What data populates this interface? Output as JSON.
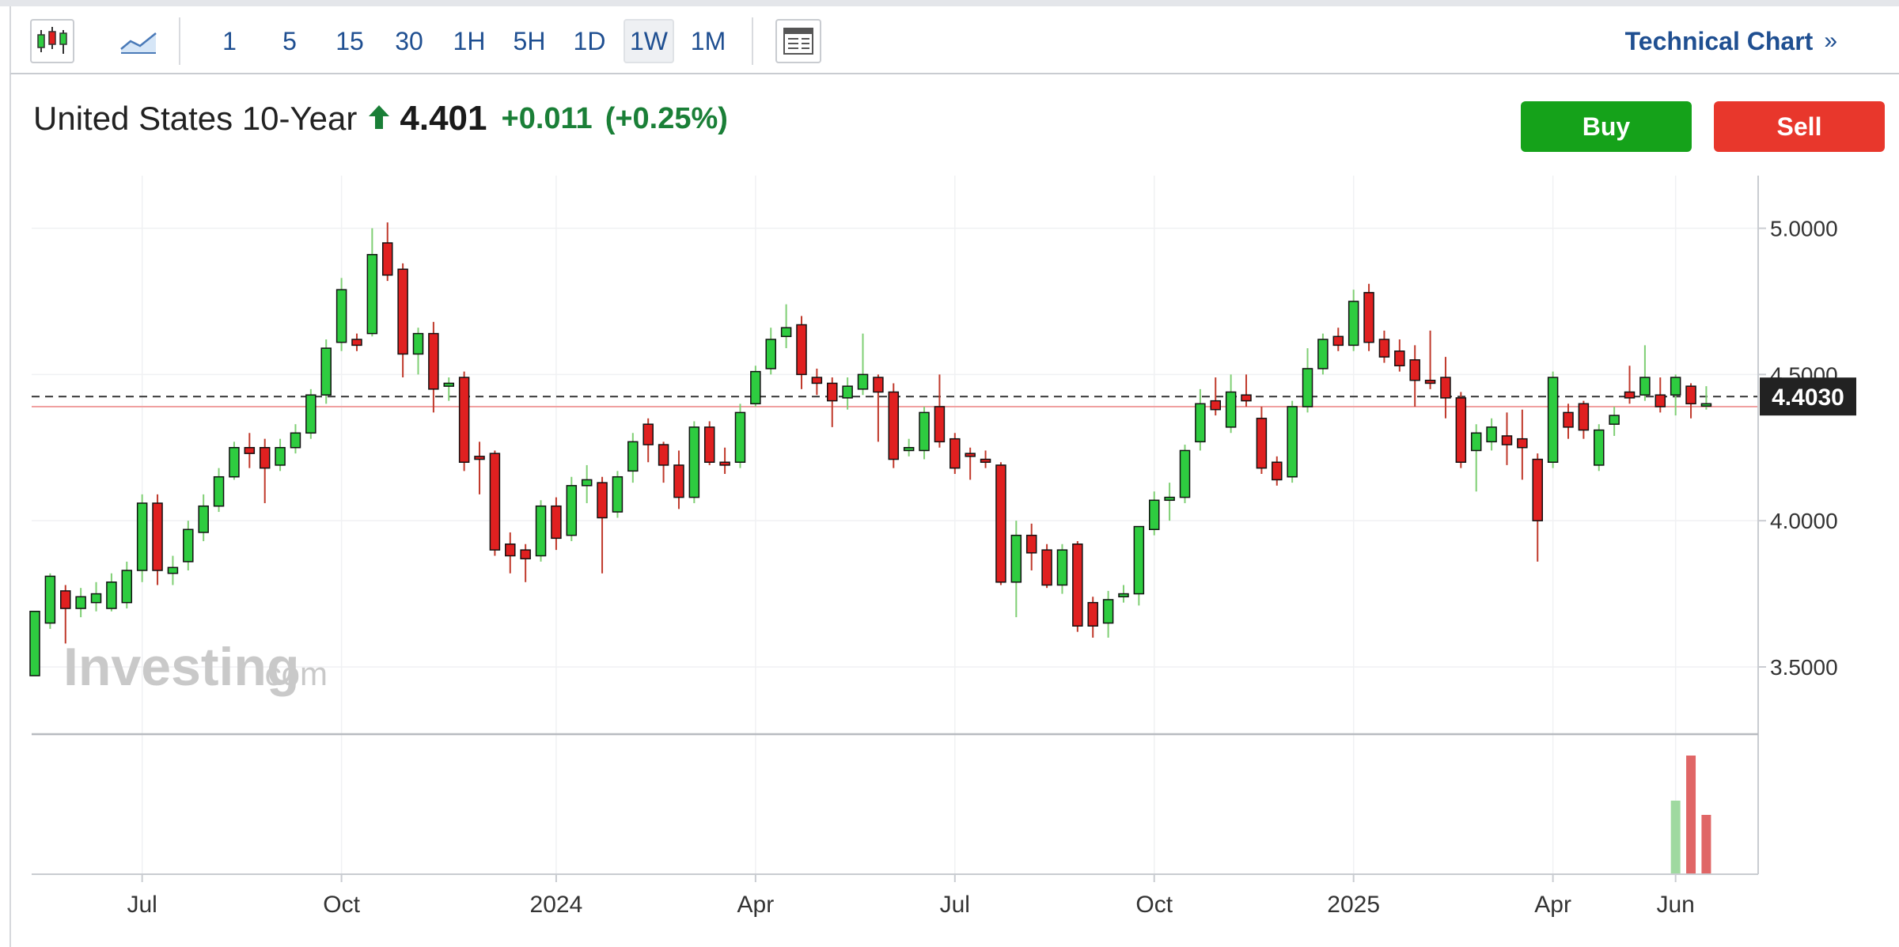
{
  "toolbar": {
    "chart_types": [
      {
        "name": "candlestick-chart-type",
        "icon": "candlestick-icon"
      },
      {
        "name": "area-chart-type",
        "icon": "area-chart-icon"
      }
    ],
    "timeframes": [
      "1",
      "5",
      "15",
      "30",
      "1H",
      "5H",
      "1D",
      "1W",
      "1M"
    ],
    "active_timeframe": "1W",
    "layout_icon": "layout-icon",
    "technical_chart_label": "Technical Chart",
    "technical_chart_chevron": "»"
  },
  "quote": {
    "name": "United States 10-Year",
    "direction_icon": "up-arrow-icon",
    "price": "4.401",
    "change": "+0.011",
    "change_pct": "(+0.25%)"
  },
  "actions": {
    "buy_label": "Buy",
    "sell_label": "Sell"
  },
  "colors": {
    "up": "#2ecc40",
    "down": "#e02020",
    "accent": "#1f4f91",
    "buy": "#15a21a",
    "sell": "#e8372c"
  },
  "watermark": {
    "brand": "Investing",
    "suffix": ".com"
  },
  "chart_data": {
    "type": "candlestick",
    "title": "United States 10-Year",
    "interval": "1W",
    "ylim": [
      3.27,
      5.18
    ],
    "y_ticks": [
      "5.0000",
      "4.5000",
      "4.0000",
      "3.5000"
    ],
    "y_tick_values": [
      5.0,
      4.5,
      4.0,
      3.5
    ],
    "x_ticks": [
      "Jul",
      "Oct",
      "2024",
      "Apr",
      "Jul",
      "Oct",
      "2025",
      "Apr",
      "Jun"
    ],
    "x_tick_week_index": [
      7,
      20,
      34,
      47,
      60,
      73,
      86,
      99,
      107
    ],
    "last_price": 4.403,
    "last_price_label": "4.4030",
    "reference_price": 4.39,
    "grid": true,
    "candles": [
      [
        3.47,
        3.69,
        3.69,
        3.47
      ],
      [
        3.65,
        3.81,
        3.82,
        3.63
      ],
      [
        3.76,
        3.7,
        3.78,
        3.58
      ],
      [
        3.7,
        3.74,
        3.77,
        3.67
      ],
      [
        3.72,
        3.75,
        3.79,
        3.69
      ],
      [
        3.7,
        3.79,
        3.82,
        3.69
      ],
      [
        3.72,
        3.83,
        3.86,
        3.7
      ],
      [
        3.83,
        4.06,
        4.09,
        3.79
      ],
      [
        4.06,
        3.83,
        4.09,
        3.78
      ],
      [
        3.82,
        3.84,
        3.88,
        3.78
      ],
      [
        3.86,
        3.97,
        4.0,
        3.83
      ],
      [
        3.96,
        4.05,
        4.09,
        3.93
      ],
      [
        4.05,
        4.15,
        4.18,
        4.03
      ],
      [
        4.15,
        4.25,
        4.27,
        4.14
      ],
      [
        4.25,
        4.23,
        4.3,
        4.18
      ],
      [
        4.25,
        4.18,
        4.28,
        4.06
      ],
      [
        4.19,
        4.25,
        4.28,
        4.17
      ],
      [
        4.25,
        4.3,
        4.33,
        4.23
      ],
      [
        4.3,
        4.43,
        4.45,
        4.28
      ],
      [
        4.43,
        4.59,
        4.62,
        4.4
      ],
      [
        4.61,
        4.79,
        4.83,
        4.58
      ],
      [
        4.62,
        4.6,
        4.64,
        4.58
      ],
      [
        4.64,
        4.91,
        5.0,
        4.63
      ],
      [
        4.95,
        4.84,
        5.02,
        4.82
      ],
      [
        4.86,
        4.57,
        4.88,
        4.49
      ],
      [
        4.57,
        4.64,
        4.66,
        4.5
      ],
      [
        4.64,
        4.45,
        4.68,
        4.37
      ],
      [
        4.46,
        4.47,
        4.49,
        4.41
      ],
      [
        4.49,
        4.2,
        4.51,
        4.17
      ],
      [
        4.22,
        4.21,
        4.27,
        4.09
      ],
      [
        4.23,
        3.9,
        4.24,
        3.88
      ],
      [
        3.92,
        3.88,
        3.96,
        3.82
      ],
      [
        3.9,
        3.87,
        3.92,
        3.79
      ],
      [
        3.88,
        4.05,
        4.07,
        3.86
      ],
      [
        4.05,
        3.94,
        4.08,
        3.9
      ],
      [
        3.95,
        4.12,
        4.15,
        3.93
      ],
      [
        4.12,
        4.14,
        4.19,
        4.06
      ],
      [
        4.13,
        4.01,
        4.15,
        3.82
      ],
      [
        4.03,
        4.15,
        4.17,
        4.01
      ],
      [
        4.17,
        4.27,
        4.3,
        4.13
      ],
      [
        4.33,
        4.26,
        4.35,
        4.2
      ],
      [
        4.26,
        4.19,
        4.27,
        4.13
      ],
      [
        4.19,
        4.08,
        4.24,
        4.04
      ],
      [
        4.08,
        4.32,
        4.34,
        4.06
      ],
      [
        4.32,
        4.2,
        4.34,
        4.19
      ],
      [
        4.2,
        4.19,
        4.25,
        4.16
      ],
      [
        4.2,
        4.37,
        4.4,
        4.18
      ],
      [
        4.4,
        4.51,
        4.53,
        4.39
      ],
      [
        4.52,
        4.62,
        4.66,
        4.5
      ],
      [
        4.63,
        4.66,
        4.74,
        4.59
      ],
      [
        4.67,
        4.5,
        4.7,
        4.45
      ],
      [
        4.49,
        4.47,
        4.52,
        4.43
      ],
      [
        4.47,
        4.41,
        4.49,
        4.32
      ],
      [
        4.42,
        4.46,
        4.49,
        4.38
      ],
      [
        4.45,
        4.5,
        4.64,
        4.43
      ],
      [
        4.49,
        4.44,
        4.5,
        4.27
      ],
      [
        4.44,
        4.21,
        4.47,
        4.18
      ],
      [
        4.24,
        4.25,
        4.28,
        4.22
      ],
      [
        4.24,
        4.37,
        4.39,
        4.21
      ],
      [
        4.39,
        4.27,
        4.5,
        4.25
      ],
      [
        4.28,
        4.18,
        4.3,
        4.16
      ],
      [
        4.23,
        4.22,
        4.25,
        4.14
      ],
      [
        4.21,
        4.2,
        4.24,
        4.18
      ],
      [
        4.19,
        3.79,
        4.2,
        3.78
      ],
      [
        3.79,
        3.95,
        4.0,
        3.67
      ],
      [
        3.95,
        3.89,
        3.99,
        3.83
      ],
      [
        3.9,
        3.78,
        3.92,
        3.77
      ],
      [
        3.78,
        3.9,
        3.92,
        3.75
      ],
      [
        3.92,
        3.64,
        3.93,
        3.62
      ],
      [
        3.72,
        3.64,
        3.74,
        3.6
      ],
      [
        3.65,
        3.73,
        3.76,
        3.6
      ],
      [
        3.74,
        3.75,
        3.78,
        3.72
      ],
      [
        3.75,
        3.98,
        3.98,
        3.71
      ],
      [
        3.97,
        4.07,
        4.1,
        3.95
      ],
      [
        4.07,
        4.08,
        4.13,
        4.0
      ],
      [
        4.08,
        4.24,
        4.26,
        4.06
      ],
      [
        4.27,
        4.4,
        4.45,
        4.24
      ],
      [
        4.41,
        4.38,
        4.49,
        4.36
      ],
      [
        4.32,
        4.44,
        4.5,
        4.3
      ],
      [
        4.43,
        4.41,
        4.5,
        4.39
      ],
      [
        4.35,
        4.18,
        4.39,
        4.16
      ],
      [
        4.2,
        4.14,
        4.22,
        4.12
      ],
      [
        4.15,
        4.39,
        4.41,
        4.13
      ],
      [
        4.39,
        4.52,
        4.59,
        4.37
      ],
      [
        4.52,
        4.62,
        4.64,
        4.5
      ],
      [
        4.63,
        4.6,
        4.66,
        4.58
      ],
      [
        4.6,
        4.75,
        4.79,
        4.58
      ],
      [
        4.78,
        4.61,
        4.81,
        4.58
      ],
      [
        4.62,
        4.56,
        4.65,
        4.54
      ],
      [
        4.58,
        4.53,
        4.62,
        4.51
      ],
      [
        4.55,
        4.48,
        4.6,
        4.39
      ],
      [
        4.48,
        4.47,
        4.65,
        4.45
      ],
      [
        4.49,
        4.42,
        4.56,
        4.35
      ],
      [
        4.42,
        4.2,
        4.44,
        4.18
      ],
      [
        4.24,
        4.3,
        4.33,
        4.1
      ],
      [
        4.27,
        4.32,
        4.35,
        4.24
      ],
      [
        4.29,
        4.26,
        4.37,
        4.19
      ],
      [
        4.28,
        4.25,
        4.38,
        4.14
      ],
      [
        4.21,
        4.0,
        4.23,
        3.86
      ],
      [
        4.2,
        4.49,
        4.51,
        4.18
      ],
      [
        4.37,
        4.32,
        4.4,
        4.28
      ],
      [
        4.4,
        4.31,
        4.41,
        4.28
      ],
      [
        4.19,
        4.31,
        4.33,
        4.17
      ],
      [
        4.33,
        4.36,
        4.39,
        4.29
      ],
      [
        4.44,
        4.42,
        4.53,
        4.4
      ],
      [
        4.43,
        4.49,
        4.6,
        4.41
      ],
      [
        4.43,
        4.39,
        4.49,
        4.37
      ],
      [
        4.43,
        4.49,
        4.5,
        4.36
      ],
      [
        4.46,
        4.4,
        4.47,
        4.35
      ],
      [
        4.4,
        4.4,
        4.46,
        4.38
      ]
    ],
    "volume": {
      "bars": [
        {
          "week_index": 107,
          "value": 0.62,
          "direction": "up"
        },
        {
          "week_index": 108,
          "value": 1.0,
          "direction": "down"
        },
        {
          "week_index": 109,
          "value": 0.5,
          "direction": "down"
        }
      ]
    }
  }
}
